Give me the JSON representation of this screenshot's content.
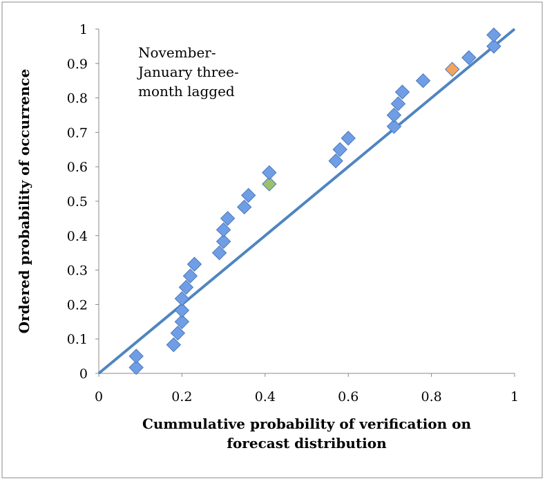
{
  "chart_data": {
    "type": "scatter",
    "annotation": [
      "November-",
      "January three-",
      "month lagged"
    ],
    "x_label": [
      "Cummulative probability of verification on",
      "forecast distribution"
    ],
    "y_label": "Ordered probability of occurrence",
    "xlim": [
      0,
      1
    ],
    "ylim": [
      0,
      1
    ],
    "xticks": [
      0,
      0.2,
      0.4,
      0.6,
      0.8,
      1
    ],
    "yticks": [
      0,
      0.1,
      0.2,
      0.3,
      0.4,
      0.5,
      0.6,
      0.7,
      0.8,
      0.9,
      1
    ],
    "grid": false,
    "series": [
      {
        "color": "#6f9ee6",
        "x": [
          0.09,
          0.09,
          0.18,
          0.19,
          0.2,
          0.2,
          0.2,
          0.21,
          0.22,
          0.23,
          0.29,
          0.3,
          0.3,
          0.31,
          0.35,
          0.36,
          0.41,
          0.41,
          0.57,
          0.58,
          0.6,
          0.71,
          0.71,
          0.72,
          0.73,
          0.78,
          0.85,
          0.89,
          0.95,
          0.95
        ],
        "values": [
          0.017,
          0.05,
          0.083,
          0.117,
          0.15,
          0.183,
          0.217,
          0.25,
          0.283,
          0.317,
          0.35,
          0.383,
          0.417,
          0.45,
          0.483,
          0.517,
          0.55,
          0.583,
          0.617,
          0.65,
          0.683,
          0.717,
          0.75,
          0.783,
          0.817,
          0.85,
          0.883,
          0.917,
          0.95,
          0.983
        ],
        "point_colors": {
          "16": "#9bc170",
          "26": "#f4a460"
        }
      }
    ],
    "reference_line": {
      "color": "#4f85c0",
      "x": [
        0,
        1
      ],
      "values": [
        0,
        1
      ]
    }
  }
}
